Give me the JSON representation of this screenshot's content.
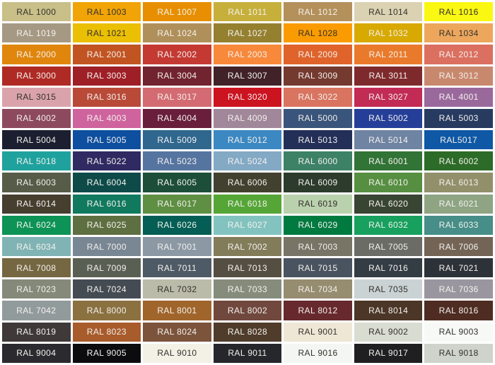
{
  "title": "RAL colour chart",
  "background": "#FFFFFF",
  "text_colors": {
    "dark": "#33312B",
    "light": "#F3F1ED"
  },
  "chart_data": {
    "type": "table",
    "columns": 7,
    "row_count": 17,
    "rows": [
      [
        {
          "label": "RAL 1000",
          "color": "#C8BF89",
          "text": "dark"
        },
        {
          "label": "RAL 1003",
          "color": "#F1A407",
          "text": "dark"
        },
        {
          "label": "RAL 1007",
          "color": "#E78F00",
          "text": "light"
        },
        {
          "label": "RAL 1011",
          "color": "#C6B03B",
          "text": "light"
        },
        {
          "label": "RAL 1012",
          "color": "#B4905B",
          "text": "light"
        },
        {
          "label": "RAL 1014",
          "color": "#DBD2B3",
          "text": "dark"
        },
        {
          "label": "RAL 1016",
          "color": "#FAF713",
          "text": "dark"
        }
      ],
      [
        {
          "label": "RAL 1019",
          "color": "#A69984",
          "text": "light"
        },
        {
          "label": "RAL 1021",
          "color": "#EBBF04",
          "text": "dark"
        },
        {
          "label": "RAL 1024",
          "color": "#B0905A",
          "text": "light"
        },
        {
          "label": "RAL 1027",
          "color": "#958030",
          "text": "light"
        },
        {
          "label": "RAL 1028",
          "color": "#FA9B02",
          "text": "dark"
        },
        {
          "label": "RAL 1032",
          "color": "#D8A901",
          "text": "light"
        },
        {
          "label": "RAL 1034",
          "color": "#EDA75D",
          "text": "dark"
        }
      ],
      [
        {
          "label": "RAL 2000",
          "color": "#E0860D",
          "text": "light"
        },
        {
          "label": "RAL 2001",
          "color": "#C25422",
          "text": "light"
        },
        {
          "label": "RAL 2002",
          "color": "#C43A33",
          "text": "light"
        },
        {
          "label": "RAL 2003",
          "color": "#F8883A",
          "text": "light"
        },
        {
          "label": "RAL 2009",
          "color": "#E0632B",
          "text": "light"
        },
        {
          "label": "RAL 2011",
          "color": "#EA7A2B",
          "text": "light"
        },
        {
          "label": "RAL 2012",
          "color": "#DB6F60",
          "text": "light"
        }
      ],
      [
        {
          "label": "RAL 3000",
          "color": "#AF2A25",
          "text": "light"
        },
        {
          "label": "RAL 3003",
          "color": "#9F1F27",
          "text": "light"
        },
        {
          "label": "RAL 3004",
          "color": "#71232F",
          "text": "light"
        },
        {
          "label": "RAL 3007",
          "color": "#402228",
          "text": "light"
        },
        {
          "label": "RAL 3009",
          "color": "#74392F",
          "text": "light"
        },
        {
          "label": "RAL 3011",
          "color": "#7E2A2D",
          "text": "light"
        },
        {
          "label": "RAL 3012",
          "color": "#C8886E",
          "text": "light"
        }
      ],
      [
        {
          "label": "RAL 3015",
          "color": "#DAA3AB",
          "text": "dark"
        },
        {
          "label": "RAL 3016",
          "color": "#B94A38",
          "text": "light"
        },
        {
          "label": "RAL 3017",
          "color": "#D46B72",
          "text": "light"
        },
        {
          "label": "RAL 3020",
          "color": "#CC1320",
          "text": "light"
        },
        {
          "label": "RAL 3022",
          "color": "#D97460",
          "text": "light"
        },
        {
          "label": "RAL 3027",
          "color": "#C22B54",
          "text": "light"
        },
        {
          "label": "RAL 4001",
          "color": "#9A699C",
          "text": "light"
        }
      ],
      [
        {
          "label": "RAL 4002",
          "color": "#8D4A5E",
          "text": "light"
        },
        {
          "label": "RAL 4003",
          "color": "#CF639E",
          "text": "light"
        },
        {
          "label": "RAL 4004",
          "color": "#691E3C",
          "text": "light"
        },
        {
          "label": "RAL 4009",
          "color": "#A1879A",
          "text": "light"
        },
        {
          "label": "RAL 5000",
          "color": "#3A557B",
          "text": "light"
        },
        {
          "label": "RAL 5002",
          "color": "#253F99",
          "text": "light"
        },
        {
          "label": "RAL 5003",
          "color": "#273A60",
          "text": "light"
        }
      ],
      [
        {
          "label": "RAL 5004",
          "color": "#1B1F2F",
          "text": "light"
        },
        {
          "label": "RAL 5005",
          "color": "#0E4F9F",
          "text": "light"
        },
        {
          "label": "RAL 5009",
          "color": "#2F678E",
          "text": "light"
        },
        {
          "label": "RAL 5012",
          "color": "#3C88C2",
          "text": "light"
        },
        {
          "label": "RAL 5013",
          "color": "#242F58",
          "text": "light"
        },
        {
          "label": "RAL 5014",
          "color": "#6F83A2",
          "text": "light"
        },
        {
          "label": "RAL5017",
          "color": "#0F58A5",
          "text": "light"
        }
      ],
      [
        {
          "label": "RAL 5018",
          "color": "#1FA29E",
          "text": "light"
        },
        {
          "label": "RAL 5022",
          "color": "#2F2A62",
          "text": "light"
        },
        {
          "label": "RAL 5023",
          "color": "#5674A0",
          "text": "light"
        },
        {
          "label": "RAL 5024",
          "color": "#83A9C5",
          "text": "light"
        },
        {
          "label": "RAL 6000",
          "color": "#3D8167",
          "text": "light"
        },
        {
          "label": "RAL 6001",
          "color": "#327336",
          "text": "light"
        },
        {
          "label": "RAL 6002",
          "color": "#2D6B28",
          "text": "light"
        }
      ],
      [
        {
          "label": "RAL 6003",
          "color": "#565C48",
          "text": "light"
        },
        {
          "label": "RAL 6004",
          "color": "#0D4A48",
          "text": "light"
        },
        {
          "label": "RAL 6005",
          "color": "#1D4E3A",
          "text": "light"
        },
        {
          "label": "RAL 6006",
          "color": "#42412F",
          "text": "light"
        },
        {
          "label": "RAL 6009",
          "color": "#2C3B2B",
          "text": "light"
        },
        {
          "label": "RAL 6010",
          "color": "#568F41",
          "text": "light"
        },
        {
          "label": "RAL 6013",
          "color": "#91906B",
          "text": "light"
        }
      ],
      [
        {
          "label": "RAL 6014",
          "color": "#463E2F",
          "text": "light"
        },
        {
          "label": "RAL 6016",
          "color": "#10795E",
          "text": "light"
        },
        {
          "label": "RAL 6017",
          "color": "#5E8F43",
          "text": "light"
        },
        {
          "label": "RAL 6018",
          "color": "#55A636",
          "text": "light"
        },
        {
          "label": "RAL 6019",
          "color": "#BAD1AE",
          "text": "dark"
        },
        {
          "label": "RAL 6020",
          "color": "#394533",
          "text": "light"
        },
        {
          "label": "RAL 6021",
          "color": "#8EA483",
          "text": "light"
        }
      ],
      [
        {
          "label": "RAL 6024",
          "color": "#0C9355",
          "text": "light"
        },
        {
          "label": "RAL 6025",
          "color": "#5E6F41",
          "text": "light"
        },
        {
          "label": "RAL 6026",
          "color": "#045E55",
          "text": "light"
        },
        {
          "label": "RAL 6027",
          "color": "#82C3C0",
          "text": "light"
        },
        {
          "label": "RAL 6029",
          "color": "#017A40",
          "text": "light"
        },
        {
          "label": "RAL 6032",
          "color": "#17A05E",
          "text": "light"
        },
        {
          "label": "RAL 6033",
          "color": "#468E87",
          "text": "light"
        }
      ],
      [
        {
          "label": "RAL 6034",
          "color": "#80B3B4",
          "text": "light"
        },
        {
          "label": "RAL 7000",
          "color": "#798693",
          "text": "light"
        },
        {
          "label": "RAL 7001",
          "color": "#8C98A4",
          "text": "light"
        },
        {
          "label": "RAL 7002",
          "color": "#837C5B",
          "text": "light"
        },
        {
          "label": "RAL 7003",
          "color": "#787466",
          "text": "light"
        },
        {
          "label": "RAL 7005",
          "color": "#6B6C66",
          "text": "light"
        },
        {
          "label": "RAL 7006",
          "color": "#736456",
          "text": "light"
        }
      ],
      [
        {
          "label": "RAL 7008",
          "color": "#756741",
          "text": "light"
        },
        {
          "label": "RAL 7009",
          "color": "#5A5F53",
          "text": "light"
        },
        {
          "label": "RAL 7011",
          "color": "#4E5A65",
          "text": "light"
        },
        {
          "label": "RAL 7013",
          "color": "#554F43",
          "text": "light"
        },
        {
          "label": "RAL 7015",
          "color": "#4A5460",
          "text": "light"
        },
        {
          "label": "RAL 7016",
          "color": "#343C44",
          "text": "light"
        },
        {
          "label": "RAL 7021",
          "color": "#2C3238",
          "text": "light"
        }
      ],
      [
        {
          "label": "RAL 7023",
          "color": "#84897A",
          "text": "light"
        },
        {
          "label": "RAL 7024",
          "color": "#454B53",
          "text": "light"
        },
        {
          "label": "RAL 7032",
          "color": "#BBBBAA",
          "text": "dark"
        },
        {
          "label": "RAL 7033",
          "color": "#858C7C",
          "text": "light"
        },
        {
          "label": "RAL 7034",
          "color": "#968C70",
          "text": "light"
        },
        {
          "label": "RAL 7035",
          "color": "#CAD2D4",
          "text": "dark"
        },
        {
          "label": "RAL 7036",
          "color": "#9A969F",
          "text": "light"
        }
      ],
      [
        {
          "label": "RAL 7042",
          "color": "#929B9C",
          "text": "light"
        },
        {
          "label": "RAL 8000",
          "color": "#8B7040",
          "text": "light"
        },
        {
          "label": "RAL 8001",
          "color": "#A0652B",
          "text": "light"
        },
        {
          "label": "RAL 8002",
          "color": "#70483E",
          "text": "light"
        },
        {
          "label": "RAL 8012",
          "color": "#67292D",
          "text": "light"
        },
        {
          "label": "RAL 8014",
          "color": "#4B3627",
          "text": "light"
        },
        {
          "label": "RAL 8016",
          "color": "#4E2C22",
          "text": "light"
        }
      ],
      [
        {
          "label": "RAL 8019",
          "color": "#3F3939",
          "text": "light"
        },
        {
          "label": "RAL 8023",
          "color": "#A85B2B",
          "text": "light"
        },
        {
          "label": "RAL 8024",
          "color": "#7C543C",
          "text": "light"
        },
        {
          "label": "RAL 8028",
          "color": "#503C2B",
          "text": "light"
        },
        {
          "label": "RAL 9001",
          "color": "#EEE7D6",
          "text": "dark"
        },
        {
          "label": "RAL 9002",
          "color": "#D9DCD1",
          "text": "dark"
        },
        {
          "label": "RAL 9003",
          "color": "#F7F9F6",
          "text": "dark"
        }
      ],
      [
        {
          "label": "RAL 9004",
          "color": "#2A2A2F",
          "text": "light"
        },
        {
          "label": "RAL 9005",
          "color": "#0C0C0F",
          "text": "light"
        },
        {
          "label": "RAL 9010",
          "color": "#F3F1E6",
          "text": "dark"
        },
        {
          "label": "RAL 9011",
          "color": "#25272C",
          "text": "light"
        },
        {
          "label": "RAL 9016",
          "color": "#F4F6F3",
          "text": "dark"
        },
        {
          "label": "RAL 9017",
          "color": "#1F1F22",
          "text": "light"
        },
        {
          "label": "RAL 9018",
          "color": "#CED4CB",
          "text": "dark"
        }
      ]
    ]
  }
}
